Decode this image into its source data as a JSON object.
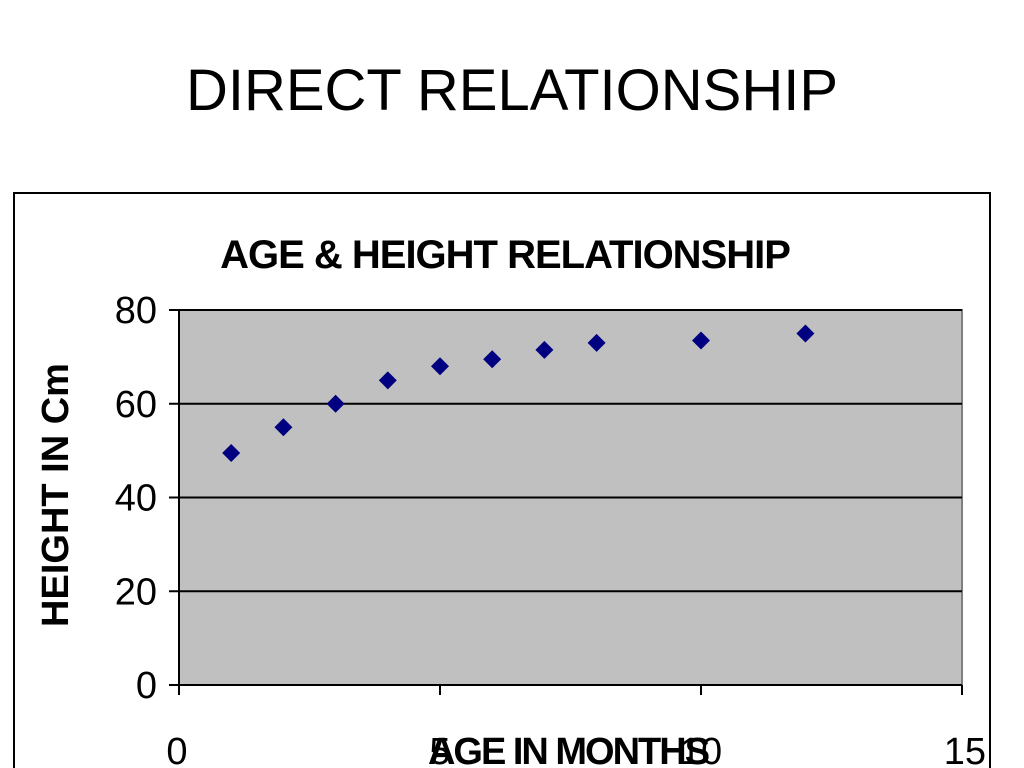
{
  "slide": {
    "title": "DIRECT RELATIONSHIP"
  },
  "chart_data": {
    "type": "scatter",
    "title": "AGE & HEIGHT RELATIONSHIP",
    "xlabel": "AGE IN MONTHS",
    "ylabel": "HEIGHT IN Cm",
    "xlim": [
      0,
      15
    ],
    "ylim": [
      0,
      80
    ],
    "xticks": [
      0,
      5,
      10,
      15
    ],
    "yticks": [
      0,
      20,
      40,
      60,
      80
    ],
    "grid": true,
    "legend": "none",
    "series": [
      {
        "x": [
          1,
          2,
          3,
          4,
          5,
          6,
          7,
          8,
          10,
          12
        ],
        "y": [
          49.5,
          55,
          60,
          65,
          68,
          69.5,
          71.5,
          73,
          73.5,
          75
        ]
      }
    ],
    "colors": {
      "marker": "#000080",
      "plot_area": "#c0c0c0",
      "gridline": "#000000"
    }
  }
}
